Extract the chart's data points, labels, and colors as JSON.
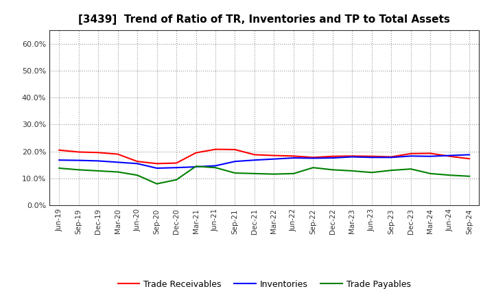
{
  "title": "[3439]  Trend of Ratio of TR, Inventories and TP to Total Assets",
  "x_labels": [
    "Jun-19",
    "Sep-19",
    "Dec-19",
    "Mar-20",
    "Jun-20",
    "Sep-20",
    "Dec-20",
    "Mar-21",
    "Jun-21",
    "Sep-21",
    "Dec-21",
    "Mar-22",
    "Jun-22",
    "Sep-22",
    "Dec-22",
    "Mar-23",
    "Jun-23",
    "Sep-23",
    "Dec-23",
    "Mar-24",
    "Jun-24",
    "Sep-24"
  ],
  "trade_receivables": [
    0.205,
    0.198,
    0.196,
    0.19,
    0.163,
    0.155,
    0.157,
    0.195,
    0.208,
    0.207,
    0.188,
    0.185,
    0.183,
    0.178,
    0.182,
    0.183,
    0.182,
    0.18,
    0.192,
    0.193,
    0.182,
    0.173
  ],
  "inventories": [
    0.168,
    0.167,
    0.165,
    0.16,
    0.155,
    0.138,
    0.14,
    0.143,
    0.147,
    0.163,
    0.168,
    0.172,
    0.176,
    0.175,
    0.176,
    0.18,
    0.178,
    0.178,
    0.183,
    0.182,
    0.185,
    0.188
  ],
  "trade_payables": [
    0.138,
    0.132,
    0.128,
    0.124,
    0.112,
    0.08,
    0.095,
    0.145,
    0.14,
    0.12,
    0.118,
    0.116,
    0.118,
    0.14,
    0.132,
    0.128,
    0.122,
    0.13,
    0.135,
    0.118,
    0.112,
    0.108
  ],
  "tr_color": "#ff0000",
  "inv_color": "#0000ff",
  "tp_color": "#008000",
  "ylim": [
    0.0,
    0.65
  ],
  "yticks": [
    0.0,
    0.1,
    0.2,
    0.3,
    0.4,
    0.5,
    0.6
  ],
  "background_color": "#ffffff",
  "grid_color": "#999999",
  "legend_labels": [
    "Trade Receivables",
    "Inventories",
    "Trade Payables"
  ]
}
